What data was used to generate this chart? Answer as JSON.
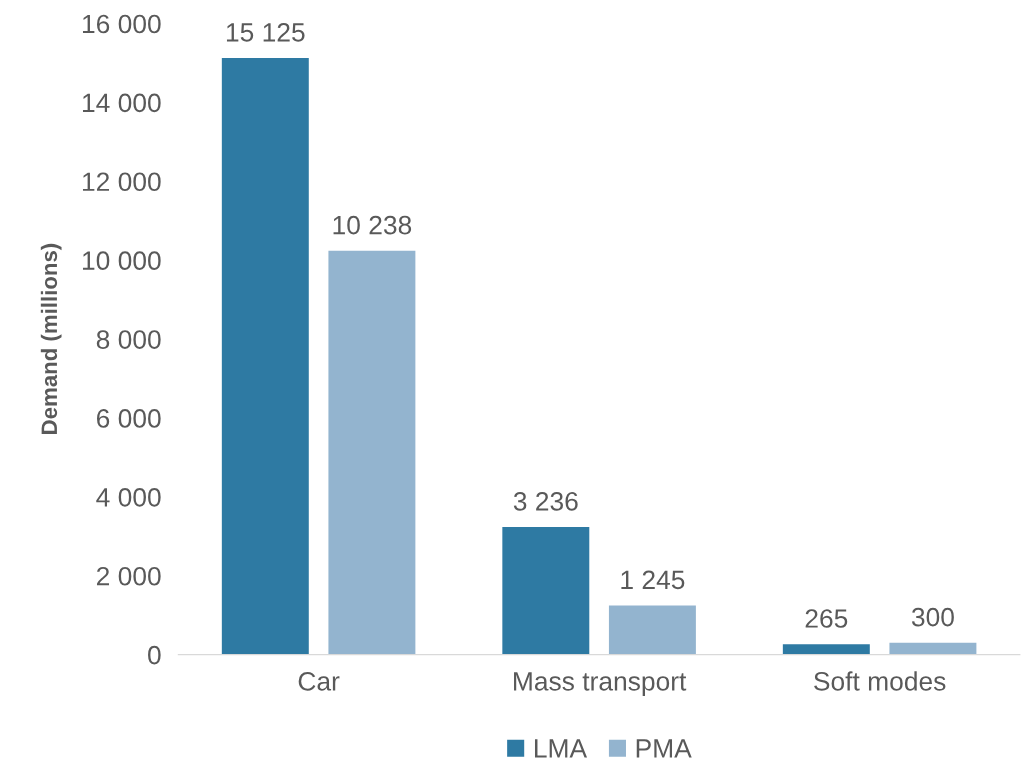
{
  "chart_data": {
    "type": "bar",
    "ylabel": "Demand (millions)",
    "categories": [
      "Car",
      "Mass transport",
      "Soft modes"
    ],
    "series": [
      {
        "name": "LMA",
        "color": "#2e7aa3",
        "values": [
          15125,
          3236,
          265
        ],
        "value_labels": [
          "15 125",
          "3 236",
          "265"
        ]
      },
      {
        "name": "PMA",
        "color": "#93b4cf",
        "values": [
          10238,
          1245,
          300
        ],
        "value_labels": [
          "10 238",
          "1 245",
          "300"
        ]
      }
    ],
    "ylim": [
      0,
      16000
    ],
    "yticks": [
      0,
      {
        "value": 2000,
        "label": "2 000"
      },
      {
        "value": 4000,
        "label": "4 000"
      },
      {
        "value": 6000,
        "label": "6 000"
      },
      {
        "value": 8000,
        "label": "8 000"
      },
      {
        "value": 10000,
        "label": "10 000"
      },
      {
        "value": 12000,
        "label": "12 000"
      },
      {
        "value": 14000,
        "label": "14 000"
      },
      {
        "value": 16000,
        "label": "16 000"
      }
    ],
    "grid": false,
    "legend": "bottom"
  }
}
